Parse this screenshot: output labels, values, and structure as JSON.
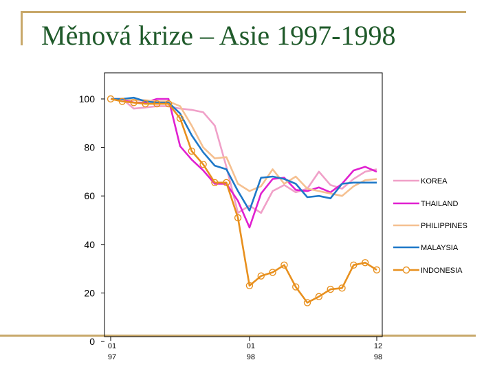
{
  "slide": {
    "title": "Měnová krize – Asie 1997-1998",
    "accent_color": "#c8a86a",
    "title_color": "#1f5a2a"
  },
  "chart_data": {
    "type": "line",
    "title": "",
    "xlabel": "",
    "ylabel": "",
    "ylim": [
      0,
      100
    ],
    "yticks": [
      0,
      20,
      40,
      60,
      80,
      100
    ],
    "xlim": [
      0,
      23
    ],
    "xtick_labels": [
      {
        "x": 0,
        "lines": [
          "01",
          "97"
        ]
      },
      {
        "x": 12,
        "lines": [
          "01",
          "98"
        ]
      },
      {
        "x": 23,
        "lines": [
          "12",
          "98"
        ]
      }
    ],
    "grid": false,
    "legend_position": "right",
    "series": [
      {
        "name": "KOREA",
        "color": "#f0a0c8",
        "marker": "none",
        "values": [
          100,
          100,
          96,
          96.5,
          97,
          97,
          96,
          95.5,
          94.5,
          89,
          72,
          53,
          56,
          53,
          62,
          64.5,
          61.5,
          63,
          70,
          64.5,
          63,
          67,
          70,
          71
        ]
      },
      {
        "name": "THAILAND",
        "color": "#e020d0",
        "marker": "none",
        "values": [
          100,
          100,
          98.5,
          98.5,
          100,
          100,
          80.5,
          75,
          70.5,
          65,
          65,
          58,
          47,
          61,
          67,
          67.5,
          62.5,
          62,
          63.5,
          61.5,
          65,
          70.5,
          72,
          70
        ]
      },
      {
        "name": "PHILIPPINES",
        "color": "#f5c090",
        "marker": "none",
        "values": [
          100,
          100,
          99.5,
          99.5,
          99,
          99,
          97,
          89,
          80,
          75.5,
          76,
          65,
          62,
          64,
          71,
          65,
          68,
          63,
          62,
          61,
          60,
          64,
          66.5,
          67
        ]
      },
      {
        "name": "MALAYSIA",
        "color": "#1e78c8",
        "marker": "none",
        "values": [
          100,
          100,
          100.5,
          99,
          98.5,
          98.5,
          94,
          85,
          78,
          72.5,
          71,
          62,
          54,
          67.5,
          68,
          67,
          65,
          59.5,
          60,
          59,
          65,
          65.5,
          65.5,
          65.5
        ]
      },
      {
        "name": "INDONESIA",
        "color": "#e8901e",
        "marker": "circle",
        "values": [
          100,
          99,
          98.5,
          98,
          98,
          98,
          92,
          78.5,
          73,
          65.5,
          65.5,
          51,
          23,
          27,
          28.5,
          31.5,
          22.5,
          16,
          18.5,
          21.5,
          22,
          31.5,
          32.5,
          29.5
        ]
      }
    ]
  }
}
